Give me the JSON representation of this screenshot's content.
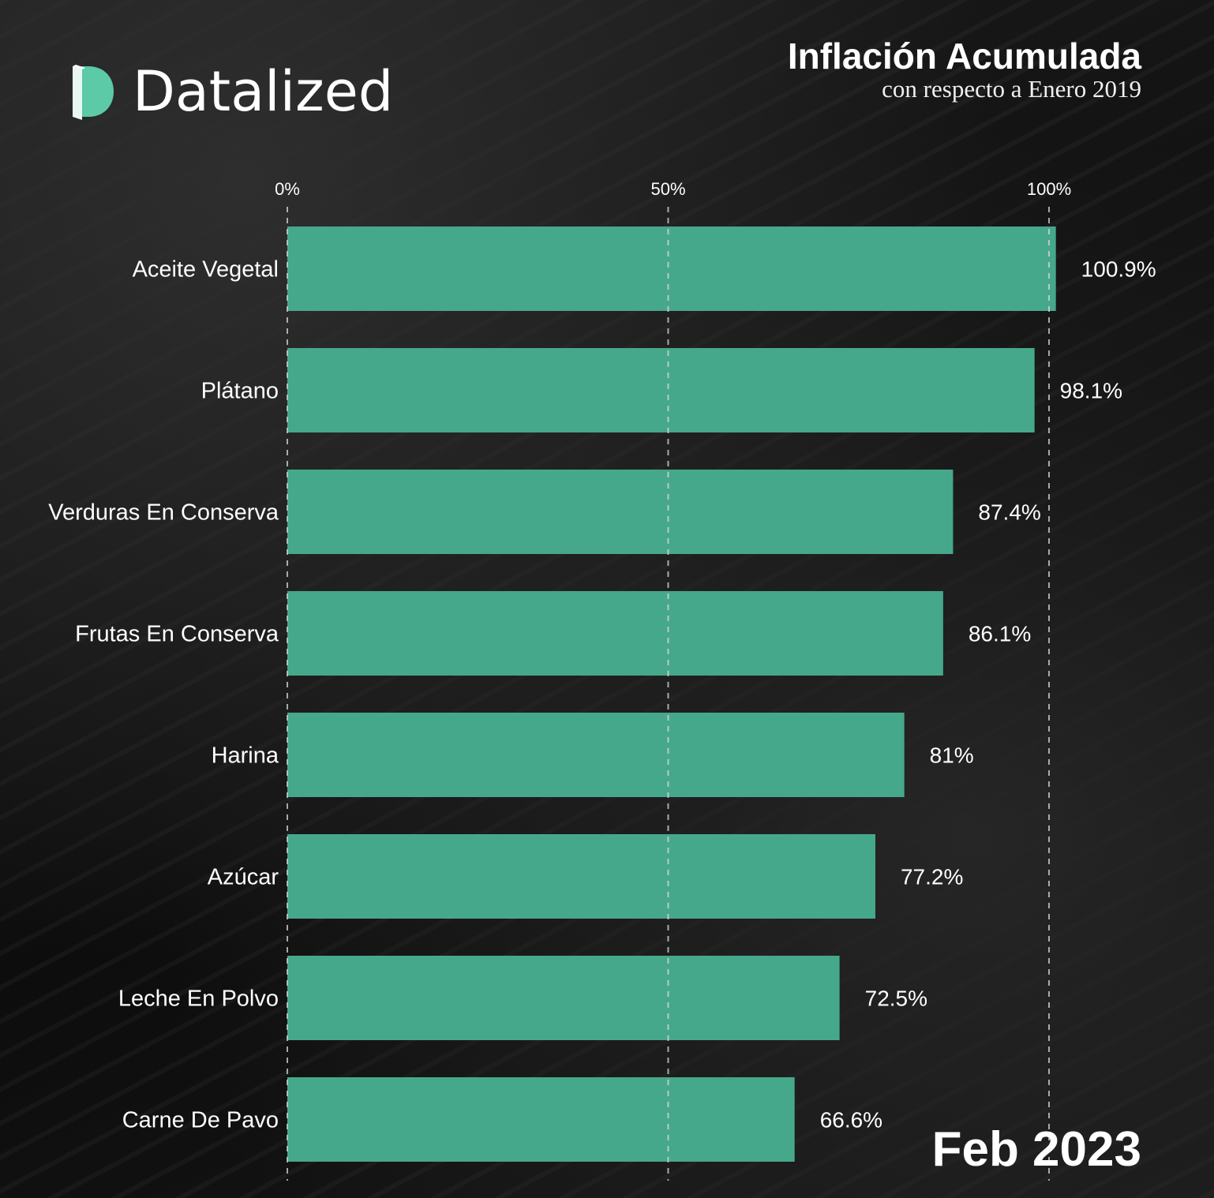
{
  "brand": {
    "name": "Datalized",
    "logo_color": "#5cc9a7"
  },
  "header": {
    "title": "Inflación Acumulada",
    "subtitle": "con respecto a Enero 2019"
  },
  "period_label": "Feb 2023",
  "colors": {
    "bar": "#46a88a",
    "text": "#ffffff",
    "gridline": "#d9d9d9"
  },
  "chart_data": {
    "type": "bar",
    "orientation": "horizontal",
    "title": "Inflación Acumulada",
    "subtitle": "con respecto a Enero 2019",
    "categories": [
      "Aceite Vegetal",
      "Plátano",
      "Verduras En Conserva",
      "Frutas En Conserva",
      "Harina",
      "Azúcar",
      "Leche En Polvo",
      "Carne De Pavo"
    ],
    "values": [
      100.9,
      98.1,
      87.4,
      86.1,
      81,
      77.2,
      72.5,
      66.6
    ],
    "value_labels": [
      "100.9%",
      "98.1%",
      "87.4%",
      "86.1%",
      "81%",
      "77.2%",
      "72.5%",
      "66.6%"
    ],
    "xlim": [
      0,
      100
    ],
    "xticks": [
      0,
      50,
      100
    ],
    "xtick_labels": [
      "0%",
      "50%",
      "100%"
    ],
    "xaxis_position": "top",
    "grid": "dashed vertical",
    "legend": "none"
  }
}
